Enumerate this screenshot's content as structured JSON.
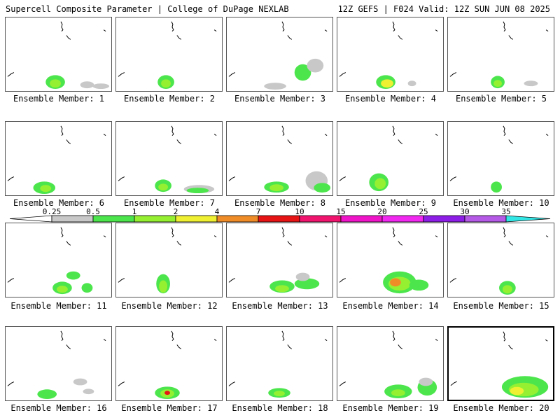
{
  "header": {
    "title_left": "Supercell Composite Parameter | College of DuPage NEXLAB",
    "title_right": "12Z GEFS | F024 Valid: 12Z SUN JUN 08 2025"
  },
  "colorbar": {
    "levels": [
      "0.25",
      "0.5",
      "1",
      "2",
      "4",
      "7",
      "10",
      "15",
      "20",
      "25",
      "30",
      "35"
    ],
    "colors": [
      "#c8c8c8",
      "#4ce64c",
      "#96f032",
      "#f0f032",
      "#f08c28",
      "#e61414",
      "#f0146e",
      "#f014c8",
      "#f028f0",
      "#8c1ee6",
      "#b45ae6",
      "#32e6e6"
    ]
  },
  "panels": [
    {
      "label": "Ensemble Member: 1",
      "selected": false
    },
    {
      "label": "Ensemble Member: 2",
      "selected": false
    },
    {
      "label": "Ensemble Member: 3",
      "selected": false
    },
    {
      "label": "Ensemble Member: 4",
      "selected": false
    },
    {
      "label": "Ensemble Member: 5",
      "selected": false
    },
    {
      "label": "Ensemble Member: 6",
      "selected": false
    },
    {
      "label": "Ensemble Member: 7",
      "selected": false
    },
    {
      "label": "Ensemble Member: 8",
      "selected": false
    },
    {
      "label": "Ensemble Member: 9",
      "selected": false
    },
    {
      "label": "Ensemble Member: 10",
      "selected": false
    },
    {
      "label": "Ensemble Member: 11",
      "selected": false
    },
    {
      "label": "Ensemble Member: 12",
      "selected": false
    },
    {
      "label": "Ensemble Member: 13",
      "selected": false
    },
    {
      "label": "Ensemble Member: 14",
      "selected": false
    },
    {
      "label": "Ensemble Member: 15",
      "selected": false
    },
    {
      "label": "Ensemble Member: 16",
      "selected": false
    },
    {
      "label": "Ensemble Member: 17",
      "selected": false
    },
    {
      "label": "Ensemble Member: 18",
      "selected": false
    },
    {
      "label": "Ensemble Member: 19",
      "selected": false
    },
    {
      "label": "Ensemble Member: 20",
      "selected": true
    }
  ]
}
